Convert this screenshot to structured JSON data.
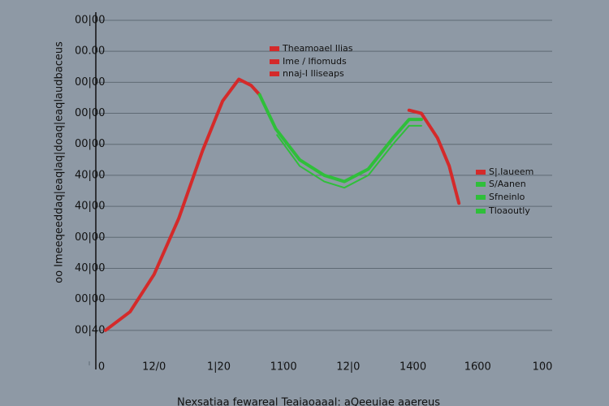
{
  "chart_data": {
    "type": "line",
    "ylabel": "oo Imeeqeeddaq|eaqlaq|doaq|eaqlaudbaceus",
    "xlabel": "Nexsatiaa fewareal Teaiaoaaal: aQeeuiae aaereus",
    "xlim": [
      0,
      7
    ],
    "xticks": [
      0,
      {
        "value": 1,
        "label": "12/0"
      },
      {
        "value": 2,
        "label": "1|20"
      },
      {
        "value": 3,
        "label": "1100"
      },
      {
        "value": 4,
        "label": "12|0"
      },
      {
        "value": 5,
        "label": "1400"
      },
      {
        "value": 6,
        "label": "1600"
      },
      {
        "value": 7,
        "label": "100"
      }
    ],
    "ylim": [
      0,
      11
    ],
    "yticks": [
      {
        "value": 1,
        "label": "00|40"
      },
      {
        "value": 2,
        "label": "00|00"
      },
      {
        "value": 3,
        "label": "40|00"
      },
      {
        "value": 4,
        "label": "00|00"
      },
      {
        "value": 5,
        "label": "40|00"
      },
      {
        "value": 6,
        "label": "40|00"
      },
      {
        "value": 7,
        "label": "00|00"
      },
      {
        "value": 8,
        "label": "00|00"
      },
      {
        "value": 9,
        "label": "00|00"
      },
      {
        "value": 10,
        "label": "00.00"
      },
      {
        "value": 11,
        "label": "00|00"
      }
    ],
    "grid": true,
    "series": [
      {
        "color": "#d42a2a",
        "x": [
          0.25,
          0.63,
          1.0,
          1.38,
          1.75,
          2.06,
          2.31,
          2.5,
          2.63
        ],
        "values": [
          1.0,
          1.6,
          2.8,
          4.6,
          6.8,
          8.4,
          9.1,
          8.9,
          8.6
        ]
      },
      {
        "color": "#2fbf3a",
        "x": [
          2.63,
          2.88,
          3.25,
          3.63,
          3.94,
          4.31,
          4.69,
          4.94,
          5.13
        ],
        "values": [
          8.6,
          7.5,
          6.5,
          6.0,
          5.8,
          6.2,
          7.2,
          7.8,
          7.8
        ]
      },
      {
        "color": "#2fbf3a",
        "x": [
          2.9,
          3.25,
          3.63,
          3.94,
          4.31,
          4.69,
          4.94,
          5.13
        ],
        "values": [
          7.3,
          6.3,
          5.8,
          5.6,
          6.0,
          7.0,
          7.6,
          7.6
        ]
      },
      {
        "color": "#d42a2a",
        "x": [
          4.94,
          5.13,
          5.38,
          5.56,
          5.71
        ],
        "values": [
          8.1,
          8.0,
          7.2,
          6.3,
          5.1
        ]
      }
    ],
    "legend_top": [
      {
        "name": "Theamoael Ilias",
        "color": "#d42a2a"
      },
      {
        "name": "Ime / Ifiomuds",
        "color": "#d42a2a"
      },
      {
        "name": "nnaj-I Iliseaps",
        "color": "#d42a2a"
      }
    ],
    "legend_right": [
      {
        "name": "S|.Iaueem",
        "color": "#d42a2a"
      },
      {
        "name": "S/Aanen",
        "color": "#2fbf3a"
      },
      {
        "name": "Sfneinlo",
        "color": "#2fbf3a"
      },
      {
        "name": "Tloaoutly",
        "color": "#2fbf3a"
      }
    ]
  }
}
